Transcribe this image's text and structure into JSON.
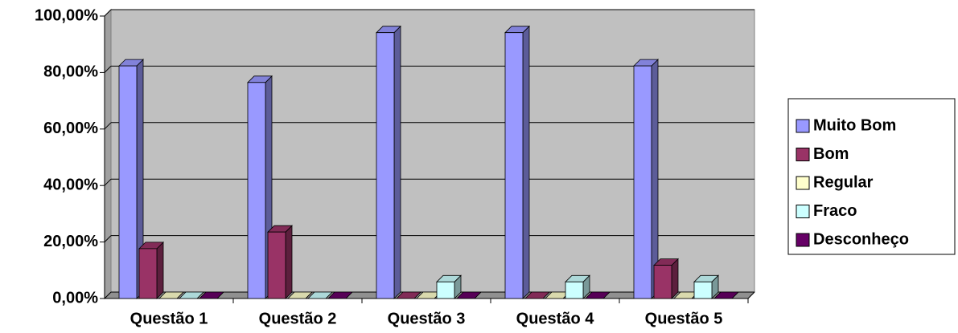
{
  "chart_data": {
    "type": "bar3d",
    "categories": [
      "Questão 1",
      "Questão 2",
      "Questão 3",
      "Questão 4",
      "Questão 5"
    ],
    "series": [
      {
        "name": "Muito Bom",
        "color": "#9999ff",
        "values": [
          82.35,
          76.47,
          94.12,
          94.12,
          82.35
        ]
      },
      {
        "name": "Bom",
        "color": "#993366",
        "values": [
          17.65,
          23.53,
          0,
          0,
          11.76
        ]
      },
      {
        "name": "Regular",
        "color": "#ffffcc",
        "values": [
          0,
          0,
          0,
          0,
          0
        ]
      },
      {
        "name": "Fraco",
        "color": "#ccffff",
        "values": [
          0,
          0,
          5.88,
          5.88,
          5.88
        ]
      },
      {
        "name": "Desconheço",
        "color": "#660066",
        "values": [
          0,
          0,
          0,
          0,
          0
        ]
      }
    ],
    "ylim": [
      0,
      100
    ],
    "yticks": [
      {
        "value": 0,
        "label": "0,00%"
      },
      {
        "value": 20,
        "label": "20,00%"
      },
      {
        "value": 40,
        "label": "40,00%"
      },
      {
        "value": 60,
        "label": "60,00%"
      },
      {
        "value": 80,
        "label": "80,00%"
      },
      {
        "value": 100,
        "label": "100,00%"
      }
    ],
    "grid": true,
    "legend": "right",
    "wall_color": "#c0c0c0"
  }
}
